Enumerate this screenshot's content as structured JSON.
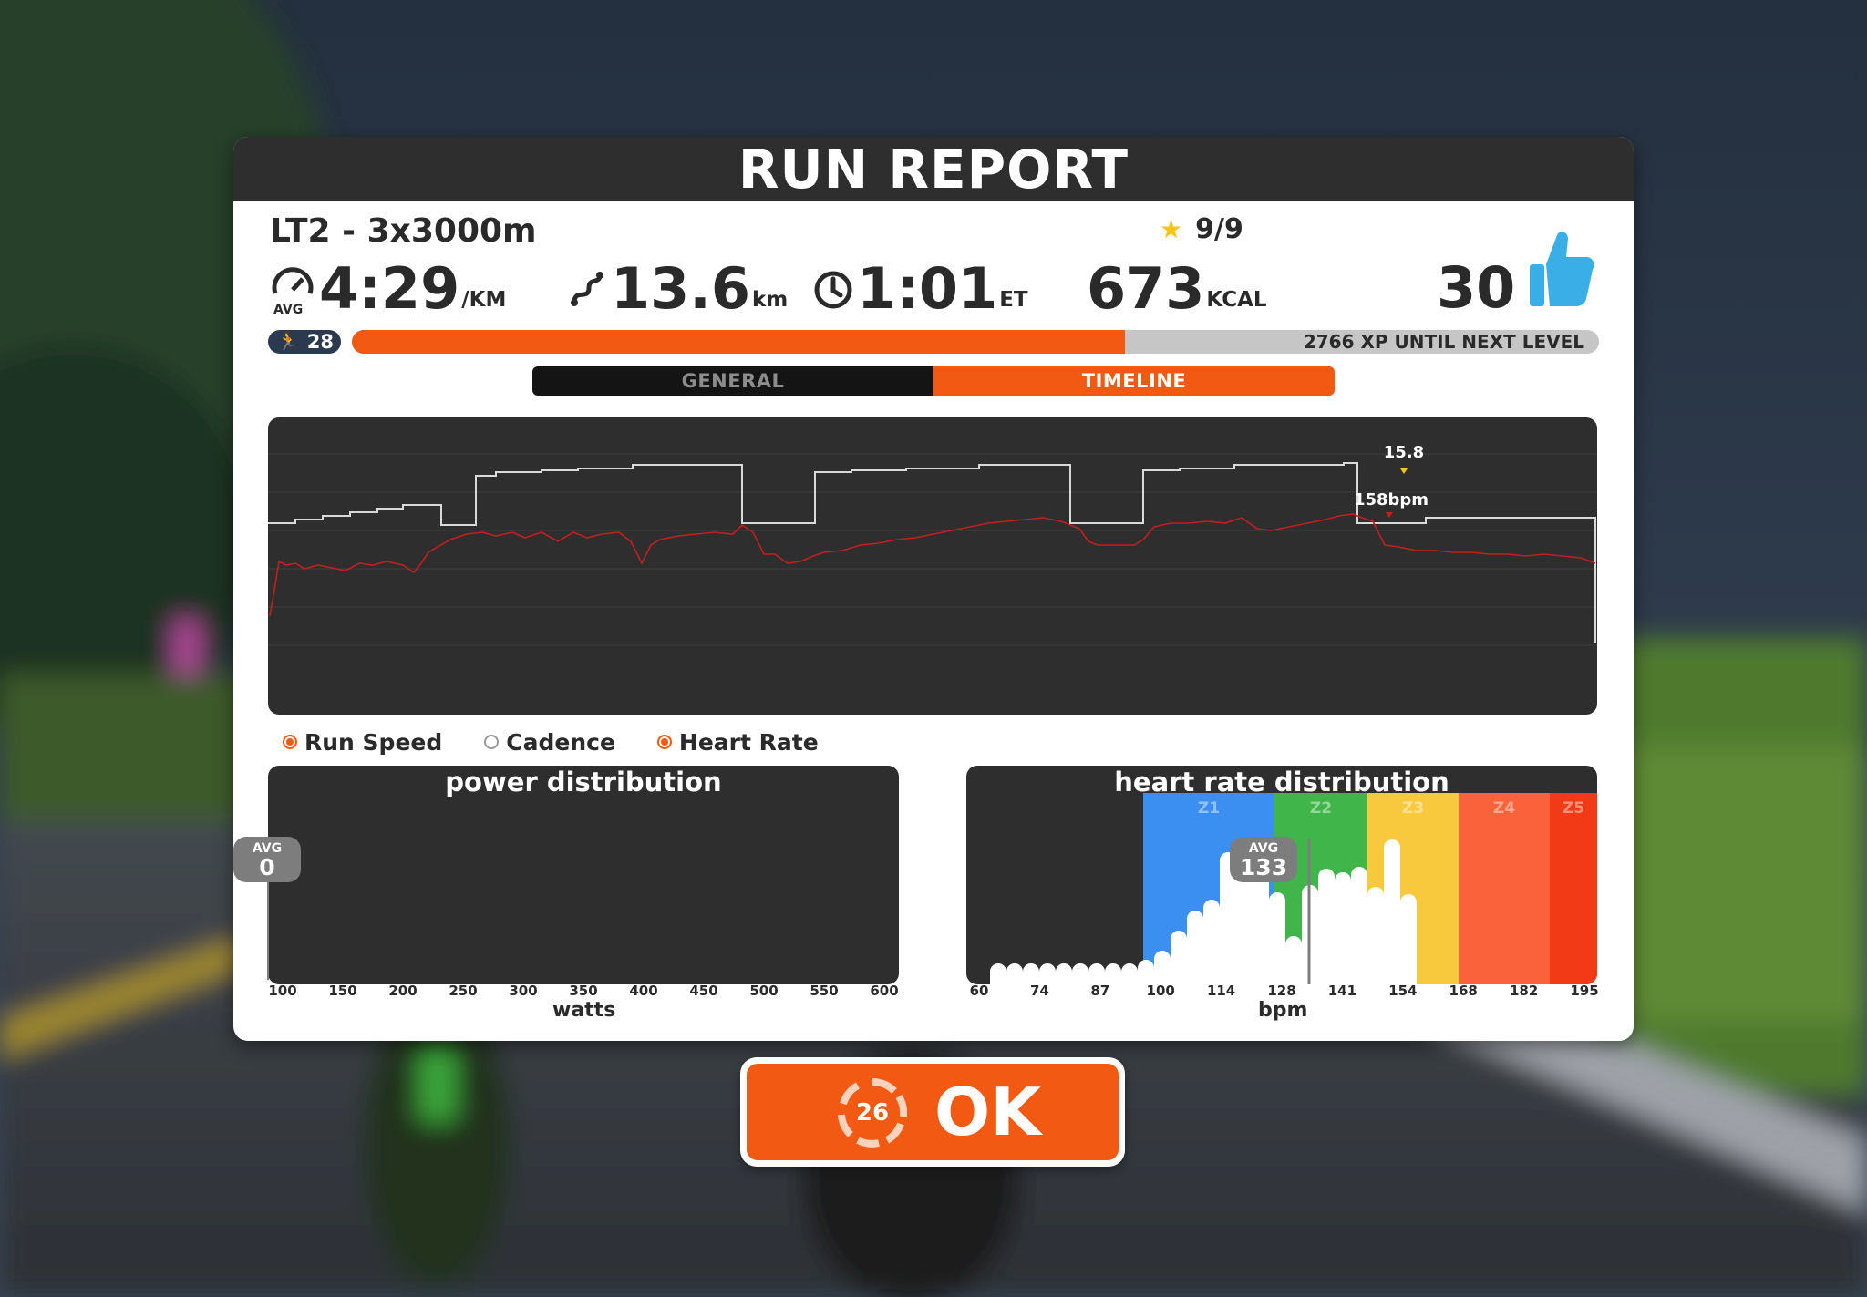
{
  "title": "RUN REPORT",
  "workout": {
    "name": "LT2 - 3x3000m",
    "stars": "9/9"
  },
  "stats": {
    "pace": {
      "icon": "speedometer-icon",
      "prefix": "AVG",
      "value": "4:29",
      "unit": "/KM"
    },
    "distance": {
      "icon": "route-icon",
      "value": "13.6",
      "unit": "km"
    },
    "time": {
      "icon": "clock-icon",
      "value": "1:01",
      "unit": "ET"
    },
    "calories": {
      "value": "673",
      "unit": "KCAL"
    },
    "xp": {
      "value": "30",
      "icon": "thumbs-up-icon"
    }
  },
  "level": {
    "icon": "runner-icon",
    "value": "28",
    "progress": 0.62,
    "xp_text": "2766 XP UNTIL NEXT LEVEL"
  },
  "tabs": [
    {
      "label": "GENERAL",
      "active": false
    },
    {
      "label": "TIMELINE",
      "active": true
    }
  ],
  "timeline": {
    "peak_speed_label": "15.8",
    "peak_hr_label": "158bpm",
    "colors": {
      "speed": "#d9d9d9",
      "heart_rate": "#c41e1e",
      "marker": "#f5c518"
    }
  },
  "legend": [
    {
      "label": "Run Speed",
      "checked": true
    },
    {
      "label": "Cadence",
      "checked": false
    },
    {
      "label": "Heart Rate",
      "checked": true
    }
  ],
  "power_distribution": {
    "title": "power distribution",
    "avg_label": "AVG",
    "avg_value": "0",
    "ticks": [
      "100",
      "150",
      "200",
      "250",
      "300",
      "350",
      "400",
      "450",
      "500",
      "550",
      "600"
    ],
    "axis_label": "watts"
  },
  "hr_distribution": {
    "title": "heart rate distribution",
    "avg_label": "AVG",
    "avg_value": "133",
    "ticks": [
      "60",
      "74",
      "87",
      "100",
      "114",
      "128",
      "141",
      "154",
      "168",
      "182",
      "195"
    ],
    "axis_label": "bpm",
    "zones": [
      {
        "label": "Z1",
        "color": "#3b8ff0"
      },
      {
        "label": "Z2",
        "color": "#3fb54a"
      },
      {
        "label": "Z3",
        "color": "#f8c93c"
      },
      {
        "label": "Z4",
        "color": "#f9623a"
      },
      {
        "label": "Z5",
        "color": "#f23a16"
      }
    ]
  },
  "ok_button": {
    "countdown": "26",
    "label": "OK"
  }
}
